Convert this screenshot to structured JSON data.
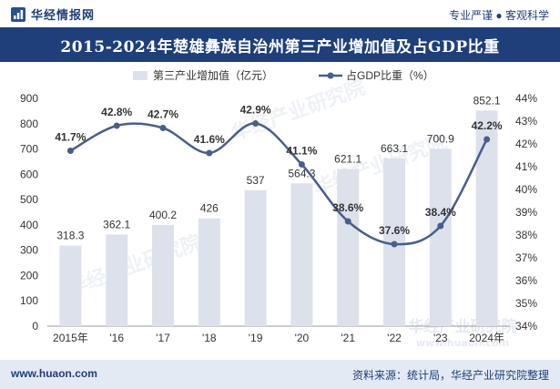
{
  "header": {
    "brand": "华经情报网",
    "tagline": "专业严谨 ● 客观科学",
    "title": "2015-2024年楚雄彝族自治州第三产业增加值及占GDP比重"
  },
  "footer": {
    "website": "www.huaon.com",
    "source": "资料来源：统计局，华经产业研究院整理"
  },
  "watermark": {
    "text": "华经产业研究院",
    "url": "www.huaon.com"
  },
  "chart_data": {
    "type": "bar+line",
    "title": "2015-2024年楚雄彝族自治州第三产业增加值及占GDP比重",
    "categories": [
      "2015年",
      "'16",
      "'17",
      "'18",
      "'19",
      "'20",
      "'21",
      "'22",
      "'23",
      "2024年"
    ],
    "series": [
      {
        "name": "第三产业增加值（亿元）",
        "type": "bar",
        "axis": "left",
        "color": "#dde1ec",
        "values": [
          318.3,
          362.1,
          400.2,
          426,
          537,
          564.3,
          621.1,
          663.1,
          700.9,
          852.1
        ],
        "labels": [
          "318.3",
          "362.1",
          "400.2",
          "426",
          "537",
          "564.3",
          "621.1",
          "663.1",
          "700.9",
          "852.1"
        ]
      },
      {
        "name": "占GDP比重（%）",
        "type": "line",
        "axis": "right",
        "color": "#4a5d8c",
        "values": [
          41.7,
          42.8,
          42.7,
          41.6,
          42.9,
          41.1,
          38.6,
          37.6,
          38.4,
          42.2
        ],
        "labels": [
          "41.7%",
          "42.8%",
          "42.7%",
          "41.6%",
          "42.9%",
          "41.1%",
          "38.6%",
          "37.6%",
          "38.4%",
          "42.2%"
        ]
      }
    ],
    "y_left": {
      "min": 0,
      "max": 900,
      "ticks": [
        "0",
        "100",
        "200",
        "300",
        "400",
        "500",
        "600",
        "700",
        "800",
        "900"
      ]
    },
    "y_right": {
      "min": 34,
      "max": 44,
      "ticks": [
        "34%",
        "35%",
        "36%",
        "37%",
        "38%",
        "39%",
        "40%",
        "41%",
        "42%",
        "43%",
        "44%"
      ]
    },
    "legend_position": "top-center",
    "grid": false
  }
}
